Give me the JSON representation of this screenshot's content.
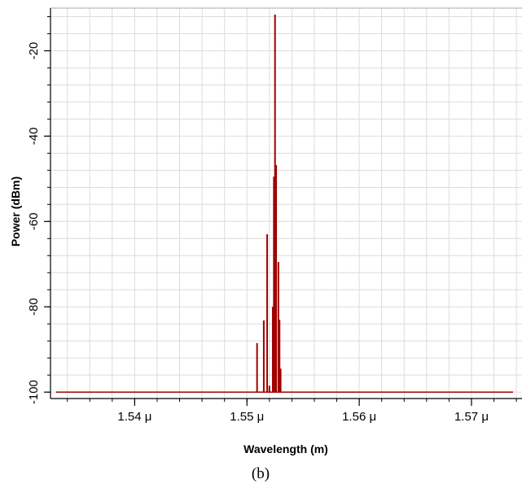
{
  "chart_data": {
    "type": "line",
    "title": "",
    "xlabel": "Wavelength (m)",
    "ylabel": "Power (dBm)",
    "caption": "(b)",
    "xlim": [
      1.5325,
      1.5745
    ],
    "ylim": [
      -101.5,
      -10
    ],
    "x_ticks": [
      {
        "value": 1.54,
        "label": "1.54 μ"
      },
      {
        "value": 1.55,
        "label": "1.55 μ"
      },
      {
        "value": 1.56,
        "label": "1.56 μ"
      },
      {
        "value": 1.57,
        "label": "1.57 μ"
      }
    ],
    "y_ticks": [
      {
        "value": -20,
        "label": "-20"
      },
      {
        "value": -40,
        "label": "-40"
      },
      {
        "value": -60,
        "label": "-60"
      },
      {
        "value": -80,
        "label": "-80"
      },
      {
        "value": -100,
        "label": "-100"
      }
    ],
    "x_unit_note": "wavelength in micrometres",
    "grid": true,
    "line_color": "#a00000",
    "baseline": -100,
    "baseline_range": [
      1.533,
      1.5737
    ],
    "series": [
      {
        "color": "#a00000",
        "peaks": [
          {
            "x": 1.5509,
            "y": -88.5
          },
          {
            "x": 1.5515,
            "y": -83.2
          },
          {
            "x": 1.5518,
            "y": -63.0
          },
          {
            "x": 1.552,
            "y": -98.5
          },
          {
            "x": 1.5523,
            "y": -80.0
          },
          {
            "x": 1.5524,
            "y": -49.5
          },
          {
            "x": 1.5525,
            "y": -11.5
          },
          {
            "x": 1.5526,
            "y": -46.8
          },
          {
            "x": 1.5528,
            "y": -69.5
          },
          {
            "x": 1.5529,
            "y": -83.0
          },
          {
            "x": 1.553,
            "y": -94.5
          }
        ]
      }
    ]
  }
}
